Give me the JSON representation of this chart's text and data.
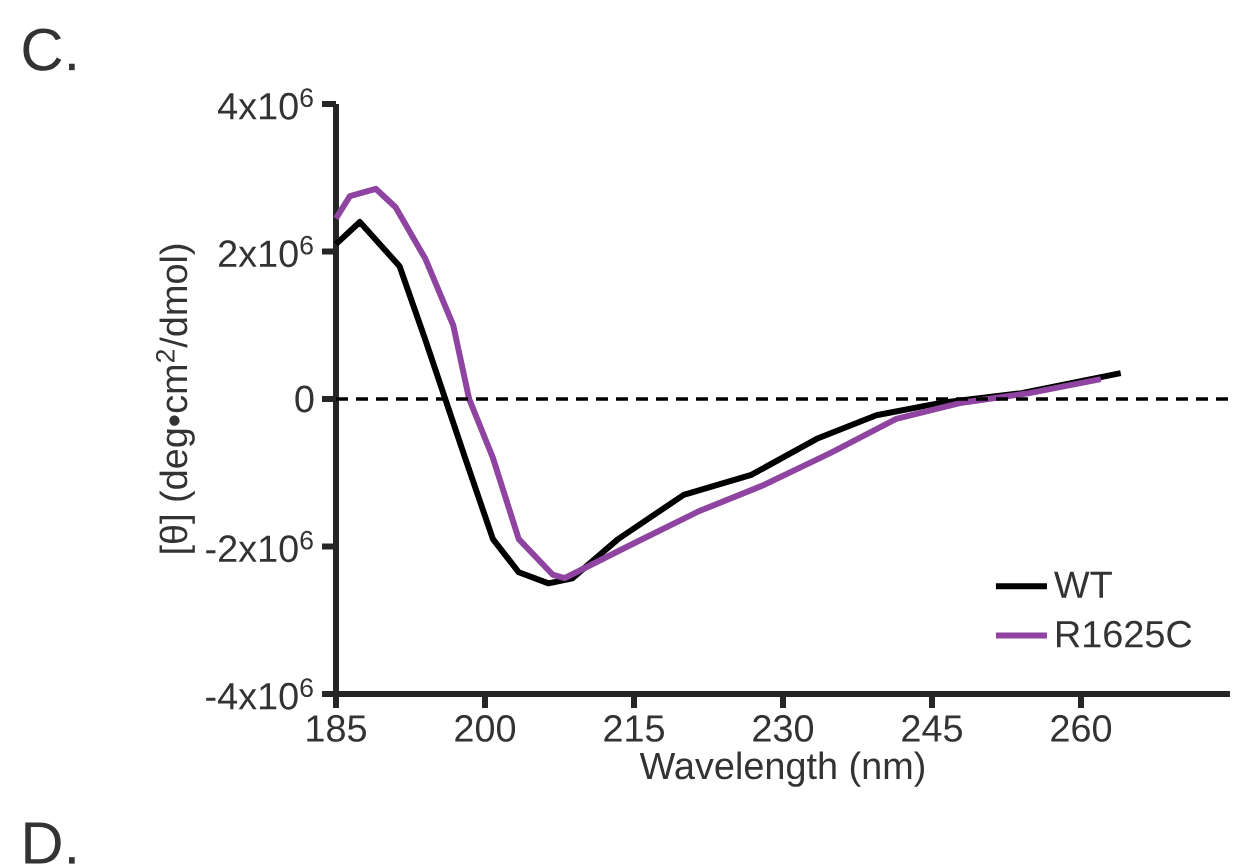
{
  "chart_data": {
    "type": "line",
    "xlabel": "Wavelength (nm)",
    "ylabel": "[θ] (deg•cm$^{2}$/dmol)",
    "xlim": [
      185,
      275
    ],
    "xticks": [
      185,
      200,
      215,
      230,
      245,
      260
    ],
    "ylim": [
      -4000000,
      4000000
    ],
    "yticks": [
      {
        "value": -4000000,
        "label": "-4x10$^{6}$"
      },
      {
        "value": -2000000,
        "label": "-2x10$^{6}$"
      },
      {
        "value": 0,
        "label": "0"
      },
      {
        "value": 2000000,
        "label": "2x10$^{6}$"
      },
      {
        "value": 4000000,
        "label": "4x10$^{6}$"
      }
    ],
    "grid": false,
    "legend": "bottom right",
    "marker": "none",
    "line_style": "solid",
    "ref_lines": [
      {
        "axis": "y",
        "value": 0,
        "line_style": "dashed",
        "color": "#000000"
      }
    ],
    "annotations": [
      "C.",
      "D."
    ],
    "series": [
      {
        "name": "WT",
        "color": "#000000",
        "x": [
          185,
          187.4,
          191.4,
          194,
          196,
          198,
          200.8,
          203.4,
          206.4,
          208.8,
          213.4,
          220,
          226.8,
          233.4,
          239.4,
          246,
          254,
          264
        ],
        "values": [
          2100000,
          2400000,
          1800000,
          800000,
          0,
          -800000,
          -1900000,
          -2350000,
          -2500000,
          -2430000,
          -1900000,
          -1300000,
          -1030000,
          -540000,
          -220000,
          -50000,
          80000,
          350000
        ]
      },
      {
        "name": "R1625C",
        "color": "#8e44a0",
        "x": [
          185,
          186.4,
          189,
          191,
          194,
          196.8,
          198.4,
          200.8,
          203.4,
          206.8,
          208,
          214.8,
          221.4,
          228,
          234.8,
          241.4,
          248,
          254.8,
          262
        ],
        "values": [
          2450000,
          2750000,
          2850000,
          2600000,
          1900000,
          1000000,
          0,
          -800000,
          -1900000,
          -2380000,
          -2430000,
          -1970000,
          -1530000,
          -1170000,
          -730000,
          -270000,
          -50000,
          80000,
          270000
        ]
      }
    ]
  }
}
